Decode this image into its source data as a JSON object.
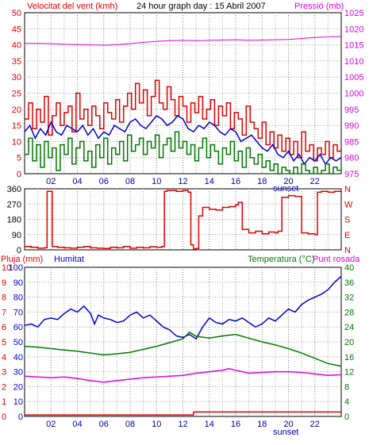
{
  "header": {
    "wind_label": "Velocitat del vent (kmh)",
    "title": "24 hour graph day : 15 Abril 2007",
    "pressure_label": "Pressió (mb)"
  },
  "colors": {
    "red": "#dd0000",
    "green": "#007700",
    "blue": "#0000cc",
    "magenta": "#dd00dd",
    "grid_minor": "#a0a0a0",
    "grid_major": "#808080"
  },
  "sunset_label": "sunset",
  "chart_data": [
    {
      "type": "line",
      "name": "wind-pressure",
      "xlabel": "",
      "xlim": [
        0,
        24
      ],
      "xticks": [
        "02",
        "04",
        "06",
        "08",
        "10",
        "12",
        "14",
        "16",
        "18",
        "20",
        "22"
      ],
      "xtick_values": [
        2,
        4,
        6,
        8,
        10,
        12,
        14,
        16,
        18,
        20,
        22
      ],
      "sunset_hour": 19.8,
      "y_left": {
        "label": "Velocitat del vent (kmh)",
        "ylim": [
          0,
          50
        ],
        "ticks": [
          0,
          5,
          10,
          15,
          20,
          25,
          30,
          35,
          40,
          45,
          50
        ]
      },
      "y_right": {
        "label": "Pressió (mb)",
        "ylim": [
          975,
          1025
        ],
        "ticks": [
          975,
          980,
          985,
          990,
          995,
          1000,
          1005,
          1010,
          1015,
          1020,
          1025
        ]
      },
      "series": [
        {
          "key": "gust",
          "color": "#dd0000",
          "axis": "left",
          "kind": "step",
          "x": [
            0,
            0.3,
            0.6,
            0.9,
            1.2,
            1.5,
            1.8,
            2.1,
            2.4,
            2.7,
            3,
            3.3,
            3.6,
            3.9,
            4.2,
            4.5,
            4.8,
            5.1,
            5.4,
            5.7,
            6,
            6.3,
            6.6,
            6.9,
            7.2,
            7.5,
            7.8,
            8.1,
            8.4,
            8.7,
            9,
            9.3,
            9.6,
            9.9,
            10.2,
            10.5,
            10.8,
            11.1,
            11.4,
            11.7,
            12,
            12.3,
            12.6,
            12.9,
            13.2,
            13.5,
            13.8,
            14.1,
            14.4,
            14.7,
            15,
            15.3,
            15.6,
            15.9,
            16.2,
            16.5,
            16.8,
            17.1,
            17.4,
            17.7,
            18,
            18.3,
            18.6,
            18.9,
            19.2,
            19.5,
            19.8,
            20.1,
            20.4,
            20.7,
            21,
            21.3,
            21.6,
            21.9,
            22.2,
            22.5,
            22.8,
            23.1,
            23.4,
            23.7,
            24
          ],
          "y": [
            17,
            22,
            14,
            20,
            16,
            24,
            12,
            18,
            22,
            15,
            19,
            21,
            13,
            25,
            17,
            20,
            15,
            21,
            18,
            14,
            22,
            19,
            17,
            23,
            16,
            21,
            25,
            20,
            28,
            22,
            26,
            18,
            24,
            29,
            22,
            20,
            27,
            23,
            18,
            24,
            21,
            16,
            22,
            19,
            24,
            17,
            20,
            23,
            15,
            21,
            18,
            22,
            14,
            19,
            17,
            12,
            21,
            16,
            14,
            11,
            16,
            9,
            13,
            8,
            12,
            7,
            11,
            6,
            10,
            5,
            13,
            7,
            9,
            4,
            8,
            6,
            10,
            5,
            9,
            7,
            8
          ]
        },
        {
          "key": "mean",
          "color": "#0000cc",
          "axis": "left",
          "kind": "line",
          "x": [
            0,
            0.4,
            0.8,
            1.2,
            1.6,
            2,
            2.4,
            2.8,
            3.2,
            3.6,
            4,
            4.4,
            4.8,
            5.2,
            5.6,
            6,
            6.4,
            6.8,
            7.2,
            7.6,
            8,
            8.4,
            8.8,
            9.2,
            9.6,
            10,
            10.4,
            10.8,
            11.2,
            11.6,
            12,
            12.4,
            12.8,
            13.2,
            13.6,
            14,
            14.4,
            14.8,
            15.2,
            15.6,
            16,
            16.4,
            16.8,
            17.2,
            17.6,
            18,
            18.4,
            18.8,
            19.2,
            19.6,
            20,
            20.4,
            20.8,
            21.2,
            21.6,
            22,
            22.4,
            22.8,
            23.2,
            23.6,
            24
          ],
          "y": [
            13,
            15,
            11,
            14,
            12,
            16,
            13,
            12,
            15,
            14,
            13,
            15,
            12,
            14,
            11,
            13,
            12,
            15,
            14,
            13,
            16,
            17,
            15,
            14,
            16,
            18,
            17,
            15,
            16,
            18,
            17,
            14,
            13,
            15,
            14,
            16,
            15,
            13,
            12,
            14,
            13,
            10,
            11,
            12,
            10,
            8,
            7,
            9,
            6,
            5,
            7,
            4,
            6,
            3,
            5,
            4,
            6,
            3,
            5,
            4,
            5
          ]
        },
        {
          "key": "lull",
          "color": "#007700",
          "axis": "left",
          "kind": "step",
          "x": [
            0,
            0.3,
            0.6,
            0.9,
            1.2,
            1.5,
            1.8,
            2.1,
            2.4,
            2.7,
            3,
            3.3,
            3.6,
            3.9,
            4.2,
            4.5,
            4.8,
            5.1,
            5.4,
            5.7,
            6,
            6.3,
            6.6,
            6.9,
            7.2,
            7.5,
            7.8,
            8.1,
            8.4,
            8.7,
            9,
            9.3,
            9.6,
            9.9,
            10.2,
            10.5,
            10.8,
            11.1,
            11.4,
            11.7,
            12,
            12.3,
            12.6,
            12.9,
            13.2,
            13.5,
            13.8,
            14.1,
            14.4,
            14.7,
            15,
            15.3,
            15.6,
            15.9,
            16.2,
            16.5,
            16.8,
            17.1,
            17.4,
            17.7,
            18,
            18.3,
            18.6,
            18.9,
            19.2,
            19.5,
            19.8,
            20.1,
            20.4,
            20.7,
            21,
            21.3,
            21.6,
            21.9,
            22.2,
            22.5,
            22.8,
            23.1,
            23.4,
            23.7,
            24
          ],
          "y": [
            6,
            11,
            4,
            9,
            2,
            10,
            5,
            8,
            1,
            9,
            6,
            11,
            3,
            8,
            10,
            4,
            7,
            2,
            9,
            5,
            11,
            3,
            8,
            6,
            10,
            4,
            12,
            7,
            9,
            11,
            6,
            10,
            8,
            12,
            5,
            9,
            11,
            7,
            13,
            8,
            10,
            6,
            9,
            4,
            8,
            11,
            5,
            9,
            7,
            3,
            8,
            6,
            10,
            4,
            7,
            2,
            8,
            5,
            3,
            6,
            2,
            4,
            1,
            3,
            0,
            2,
            1,
            0,
            2,
            0,
            3,
            1,
            0,
            2,
            0,
            1,
            3,
            0,
            2,
            1,
            2
          ]
        },
        {
          "key": "pressure",
          "color": "#dd00dd",
          "axis": "right",
          "kind": "line",
          "x": [
            0,
            1,
            2,
            3,
            4,
            5,
            6,
            7,
            8,
            9,
            10,
            11,
            12,
            13,
            14,
            15,
            16,
            17,
            18,
            19,
            20,
            21,
            22,
            23,
            24
          ],
          "y": [
            1015.5,
            1015.5,
            1015.4,
            1015.2,
            1015.1,
            1015,
            1014.9,
            1015.1,
            1015.4,
            1015.8,
            1016.1,
            1016.3,
            1016.4,
            1016.3,
            1016.4,
            1016.5,
            1016.6,
            1016.4,
            1016.5,
            1016.6,
            1016.7,
            1017,
            1017.3,
            1017.5,
            1017.6
          ]
        }
      ]
    },
    {
      "type": "line",
      "name": "wind-direction",
      "xlim": [
        0,
        24
      ],
      "y_left": {
        "ylim": [
          0,
          360
        ],
        "ticks": [
          0,
          90,
          180,
          270,
          360
        ]
      },
      "y_right": {
        "ticks": [
          "N",
          "E",
          "S",
          "W",
          "N"
        ]
      },
      "series": [
        {
          "key": "direction",
          "color": "#dd0000",
          "axis": "left",
          "kind": "step",
          "x": [
            0,
            0.5,
            1,
            1.5,
            1.7,
            1.9,
            2.1,
            2.5,
            3,
            3.5,
            4,
            4.5,
            5,
            5.5,
            6,
            6.5,
            7,
            7.5,
            8,
            8.5,
            9,
            9.5,
            10,
            10.4,
            10.6,
            10.8,
            11,
            11.5,
            12,
            12.4,
            12.6,
            12.8,
            13,
            13.2,
            13.5,
            14,
            14.5,
            15,
            15.5,
            16,
            16.2,
            16.5,
            17,
            17.5,
            18,
            18.5,
            19,
            19.2,
            19.5,
            20,
            20.5,
            21,
            21.5,
            22,
            22.2,
            22.5,
            23,
            23.5,
            24
          ],
          "y": [
            20,
            15,
            10,
            12,
            345,
            345,
            20,
            15,
            12,
            10,
            15,
            20,
            12,
            10,
            8,
            15,
            12,
            20,
            10,
            15,
            12,
            18,
            15,
            20,
            345,
            350,
            350,
            345,
            350,
            340,
            30,
            5,
            8,
            200,
            250,
            240,
            235,
            250,
            255,
            265,
            280,
            120,
            100,
            110,
            95,
            105,
            100,
            110,
            310,
            320,
            315,
            100,
            95,
            90,
            340,
            345,
            340,
            345,
            350
          ]
        }
      ]
    },
    {
      "type": "line",
      "name": "rain-humidity-temp",
      "xlim": [
        0,
        24
      ],
      "xticks": [
        "02",
        "04",
        "06",
        "08",
        "10",
        "12",
        "14",
        "16",
        "18",
        "20",
        "22"
      ],
      "xtick_values": [
        2,
        4,
        6,
        8,
        10,
        12,
        14,
        16,
        18,
        20,
        22
      ],
      "sunset_hour": 19.8,
      "y_left_outer": {
        "label": "Pluja (mm)",
        "ylim": [
          0,
          10
        ],
        "ticks": [
          0,
          1,
          2,
          3,
          4,
          5,
          6,
          7,
          8,
          9,
          10
        ]
      },
      "y_left_inner": {
        "label": "Humitat",
        "ylim": [
          0,
          100
        ],
        "ticks": [
          0,
          10,
          20,
          30,
          40,
          50,
          60,
          70,
          80,
          90,
          100
        ]
      },
      "y_right": {
        "label": "Temperatura (°C)",
        "label2": "Punt rosada",
        "ylim": [
          0,
          40
        ],
        "ticks": [
          0,
          4,
          8,
          12,
          16,
          20,
          24,
          28,
          32,
          36,
          40
        ]
      },
      "series": [
        {
          "key": "rain",
          "color": "#dd0000",
          "axis": "rain",
          "kind": "step",
          "x": [
            0,
            12.8,
            12.8,
            24
          ],
          "y": [
            0.1,
            0.1,
            0.3,
            0.3
          ]
        },
        {
          "key": "humidity",
          "color": "#0000cc",
          "axis": "humidity",
          "kind": "line",
          "x": [
            0,
            0.5,
            1,
            1.5,
            2,
            2.5,
            3,
            3.5,
            4,
            4.5,
            5,
            5.3,
            5.6,
            6,
            6.5,
            7,
            7.5,
            8,
            8.5,
            9,
            9.5,
            10,
            10.5,
            11,
            11.5,
            12,
            12.5,
            13,
            13.5,
            14,
            14.5,
            15,
            15.5,
            16,
            16.5,
            17,
            17.5,
            18,
            18.5,
            19,
            19.5,
            20,
            20.5,
            21,
            21.5,
            22,
            22.5,
            23,
            23.5,
            24
          ],
          "y": [
            61,
            62,
            60,
            65,
            66,
            65,
            69,
            72,
            70,
            74,
            69,
            62,
            68,
            66,
            65,
            63,
            64,
            68,
            70,
            66,
            68,
            64,
            60,
            58,
            54,
            53,
            55,
            52,
            60,
            66,
            63,
            62,
            65,
            64,
            66,
            63,
            60,
            62,
            66,
            64,
            68,
            72,
            70,
            75,
            78,
            80,
            82,
            85,
            90,
            94
          ]
        },
        {
          "key": "temperature",
          "color": "#007700",
          "axis": "temp",
          "kind": "line",
          "x": [
            0,
            1,
            2,
            3,
            4,
            5,
            6,
            7,
            8,
            9,
            10,
            11,
            12,
            12.5,
            13,
            14,
            15,
            16,
            17,
            18,
            19,
            20,
            21,
            22,
            23,
            24
          ],
          "y": [
            18.8,
            18.6,
            18.2,
            17.8,
            17.5,
            17,
            16.5,
            16.8,
            17.2,
            18,
            18.8,
            19.8,
            20.8,
            22.6,
            21.5,
            21,
            21.6,
            22,
            21,
            20,
            19.2,
            18.2,
            17,
            15.6,
            14.2,
            13.5
          ]
        },
        {
          "key": "dewpoint",
          "color": "#dd00dd",
          "axis": "temp",
          "kind": "line",
          "x": [
            0,
            1,
            2,
            3,
            4,
            5,
            6,
            7,
            8,
            9,
            10,
            11,
            12,
            13,
            14,
            15,
            15.5,
            16,
            17,
            18,
            19,
            20,
            21,
            22,
            23,
            24
          ],
          "y": [
            10.8,
            10.6,
            10.4,
            10.6,
            10.2,
            9.6,
            9.2,
            9.6,
            10,
            10.4,
            10.6,
            10.8,
            11,
            11.6,
            12,
            12.4,
            12.8,
            12.4,
            11.6,
            11.8,
            12,
            12,
            11.8,
            11.4,
            11,
            11.2
          ]
        }
      ]
    }
  ],
  "panel3_labels": {
    "rain": "Pluja (mm)",
    "humidity": "Humitat",
    "temperature": "Temperatura (°C)",
    "dewpoint": "Punt rosada"
  }
}
